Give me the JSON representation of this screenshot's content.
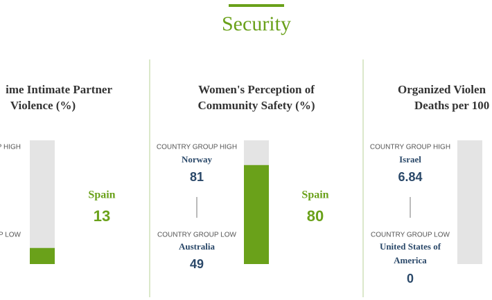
{
  "header": {
    "title": "Security"
  },
  "panels": [
    {
      "title_lines": [
        "ime Intimate Partner",
        "Violence (%)"
      ],
      "high_label": "P HIGH",
      "low_label": "P LOW",
      "country": "Spain",
      "value": 13,
      "ylim": [
        0,
        100
      ]
    },
    {
      "title_lines": [
        "Women's Perception of",
        "Community Safety (%)"
      ],
      "high_label": "COUNTRY GROUP HIGH",
      "high_country": "Norway",
      "high_value": 81,
      "low_label": "COUNTRY GROUP LOW",
      "low_country": "Australia",
      "low_value": 49,
      "country": "Spain",
      "value": 80,
      "ylim": [
        0,
        100
      ]
    },
    {
      "title_lines": [
        "Organized Violen",
        "Deaths per 100"
      ],
      "high_label": "COUNTRY GROUP HIGH",
      "high_country": "Israel",
      "high_value": 6.84,
      "low_label": "COUNTRY GROUP LOW",
      "low_country_lines": [
        "United States of",
        "America"
      ],
      "low_value": 0
    }
  ],
  "colors": {
    "accent": "#6aa11a",
    "track": "#e4e4e4",
    "navy": "#2a4869"
  }
}
